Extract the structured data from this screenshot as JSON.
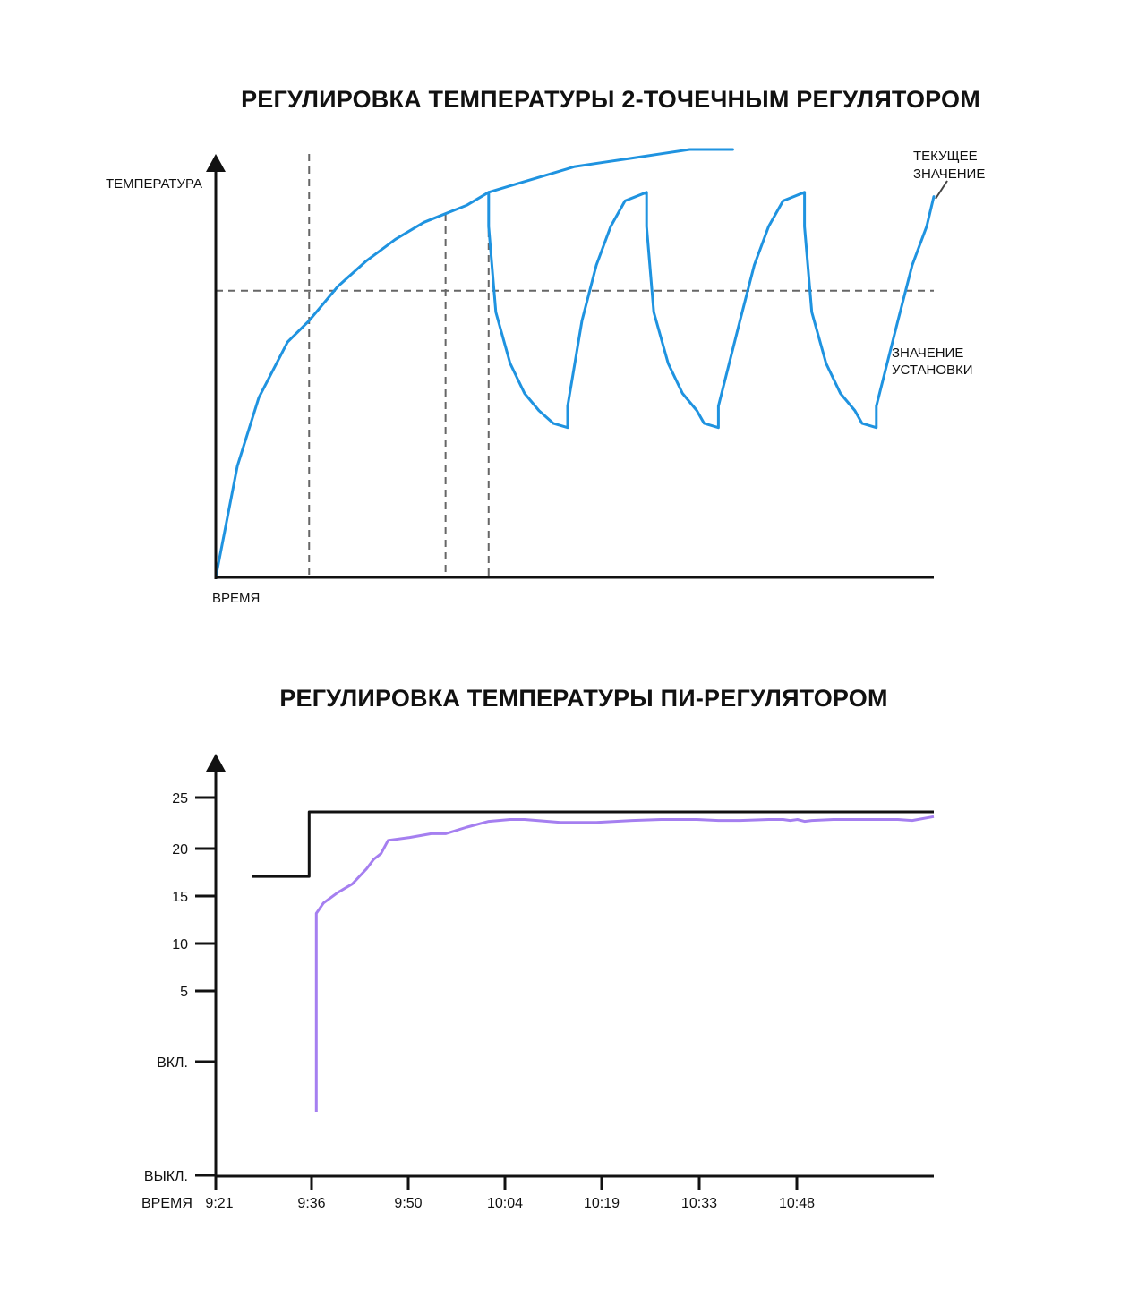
{
  "chart_data": [
    {
      "type": "line",
      "title": "РЕГУЛИРОВКА ТЕМПЕРАТУРЫ 2-ТОЧЕЧНЫМ РЕГУЛЯТОРОМ",
      "ylabel": "ТЕМПЕРАТУРА",
      "xlabel": "ВРЕМЯ",
      "grid": false,
      "colors": {
        "series": "#1f93e0",
        "reference": "#666666",
        "axis": "#111111"
      },
      "annotations": {
        "current_value": [
          "ТЕКУЩЕЕ",
          "ЗНАЧЕНИЕ"
        ],
        "setpoint": [
          "ЗНАЧЕНИЕ",
          "УСТАНОВКИ"
        ]
      },
      "setpoint": 0.67,
      "vertical_markers": [
        0.13,
        0.32,
        0.38
      ],
      "series": [
        {
          "x": [
            0,
            0.03,
            0.06,
            0.1,
            0.13,
            0.17,
            0.21,
            0.25,
            0.29,
            0.32,
            0.35,
            0.38,
            0.42,
            0.46,
            0.5,
            0.54,
            0.58,
            0.62,
            0.66,
            0.7,
            0.72
          ],
          "y": [
            0,
            0.26,
            0.42,
            0.55,
            0.6,
            0.68,
            0.74,
            0.79,
            0.83,
            0.85,
            0.87,
            0.9,
            0.92,
            0.94,
            0.96,
            0.97,
            0.98,
            0.99,
            1.0,
            1.0,
            1.0
          ]
        },
        {
          "x": [
            0.38,
            0.38,
            0.39,
            0.41,
            0.43,
            0.45,
            0.47,
            0.49,
            0.49,
            0.51,
            0.53,
            0.55,
            0.57,
            0.6,
            0.6,
            0.61,
            0.63,
            0.65,
            0.67,
            0.68,
            0.7,
            0.7,
            0.73,
            0.75,
            0.77,
            0.79,
            0.82,
            0.82,
            0.83,
            0.85,
            0.87,
            0.89,
            0.9,
            0.92,
            0.92,
            0.95,
            0.97,
            0.99,
            1.0
          ],
          "y": [
            0.9,
            0.82,
            0.62,
            0.5,
            0.43,
            0.39,
            0.36,
            0.35,
            0.4,
            0.6,
            0.73,
            0.82,
            0.88,
            0.9,
            0.82,
            0.62,
            0.5,
            0.43,
            0.39,
            0.36,
            0.35,
            0.4,
            0.6,
            0.73,
            0.82,
            0.88,
            0.9,
            0.82,
            0.62,
            0.5,
            0.43,
            0.39,
            0.36,
            0.35,
            0.4,
            0.6,
            0.73,
            0.82,
            0.89
          ]
        }
      ]
    },
    {
      "type": "line",
      "title": "РЕГУЛИРОВКА ТЕМПЕРАТУРЫ ПИ-РЕГУЛЯТОРОМ",
      "xlabel": "ВРЕМЯ",
      "x_ticks": [
        "9:21",
        "9:36",
        "9:50",
        "10:04",
        "10:19",
        "10:33",
        "10:48"
      ],
      "y_ticks": [
        "25",
        "20",
        "15",
        "10",
        "5",
        "ВКЛ.",
        "ВЫКЛ."
      ],
      "ylim": [
        0,
        25
      ],
      "grid": false,
      "colors": {
        "setpoint": "#111111",
        "actual": "#a57ff0",
        "axis": "#111111"
      },
      "series": [
        {
          "x": [
            0.05,
            0.13,
            0.13,
            1.0
          ],
          "y": [
            16.5,
            16.5,
            23.3,
            23.3
          ]
        },
        {
          "x": [
            0.14,
            0.14,
            0.15,
            0.17,
            0.19,
            0.21,
            0.22,
            0.23,
            0.24,
            0.27,
            0.3,
            0.32,
            0.35,
            0.38,
            0.41,
            0.43,
            0.48,
            0.53,
            0.58,
            0.62,
            0.67,
            0.7,
            0.73,
            0.77,
            0.79,
            0.8,
            0.81,
            0.82,
            0.83,
            0.86,
            0.9,
            0.95,
            0.97,
            1.0
          ],
          "y": [
            -8.3,
            12.6,
            13.7,
            14.8,
            15.7,
            17.3,
            18.3,
            18.9,
            20.3,
            20.6,
            21.0,
            21.0,
            21.7,
            22.3,
            22.5,
            22.5,
            22.2,
            22.2,
            22.4,
            22.5,
            22.5,
            22.4,
            22.4,
            22.5,
            22.5,
            22.4,
            22.5,
            22.3,
            22.4,
            22.5,
            22.5,
            22.5,
            22.4,
            22.8
          ]
        }
      ]
    }
  ]
}
